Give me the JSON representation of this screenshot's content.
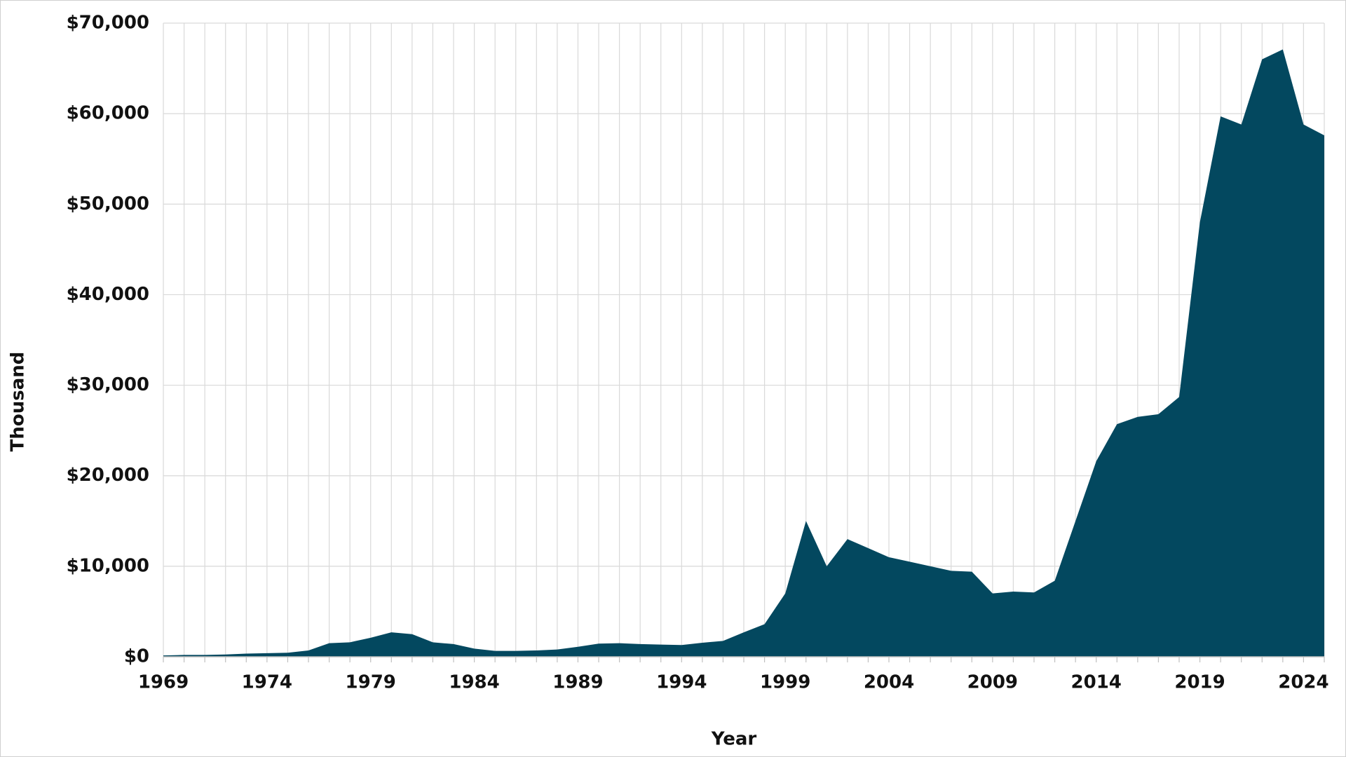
{
  "chart_data": {
    "type": "area",
    "x_label": "Year",
    "y_label": "Thousand",
    "x": [
      1969,
      1970,
      1971,
      1972,
      1973,
      1974,
      1975,
      1976,
      1977,
      1978,
      1979,
      1980,
      1981,
      1982,
      1983,
      1984,
      1985,
      1986,
      1987,
      1988,
      1989,
      1990,
      1991,
      1992,
      1993,
      1994,
      1995,
      1996,
      1997,
      1998,
      1999,
      2000,
      2001,
      2002,
      2003,
      2004,
      2005,
      2006,
      2007,
      2008,
      2009,
      2010,
      2011,
      2012,
      2013,
      2014,
      2015,
      2016,
      2017,
      2018,
      2019,
      2020,
      2021,
      2022,
      2023,
      2024,
      2025
    ],
    "values": [
      150,
      200,
      200,
      250,
      350,
      400,
      450,
      700,
      1500,
      1600,
      2100,
      2700,
      2500,
      1600,
      1400,
      900,
      650,
      650,
      700,
      800,
      1100,
      1450,
      1500,
      1400,
      1350,
      1300,
      1550,
      1750,
      2700,
      3600,
      7000,
      15000,
      10000,
      13000,
      12000,
      11000,
      10500,
      10000,
      9500,
      9400,
      7000,
      7200,
      7100,
      8400,
      15000,
      21600,
      25700,
      26500,
      26800,
      28700,
      48000,
      59700,
      58800,
      66000,
      67100,
      58800,
      57600
    ],
    "color": "#03485f",
    "xlim": [
      1969,
      2025
    ],
    "xticks": [
      1969,
      1974,
      1979,
      1984,
      1989,
      1994,
      1999,
      2004,
      2009,
      2014,
      2019,
      2024
    ],
    "ylim": [
      0,
      70000
    ],
    "yticks": [
      {
        "value": 0,
        "label": "$0"
      },
      {
        "value": 10000,
        "label": "$10,000"
      },
      {
        "value": 20000,
        "label": "$20,000"
      },
      {
        "value": 30000,
        "label": "$30,000"
      },
      {
        "value": 40000,
        "label": "$40,000"
      },
      {
        "value": 50000,
        "label": "$50,000"
      },
      {
        "value": 60000,
        "label": "$60,000"
      },
      {
        "value": 70000,
        "label": "$70,000"
      }
    ],
    "grid": true
  }
}
